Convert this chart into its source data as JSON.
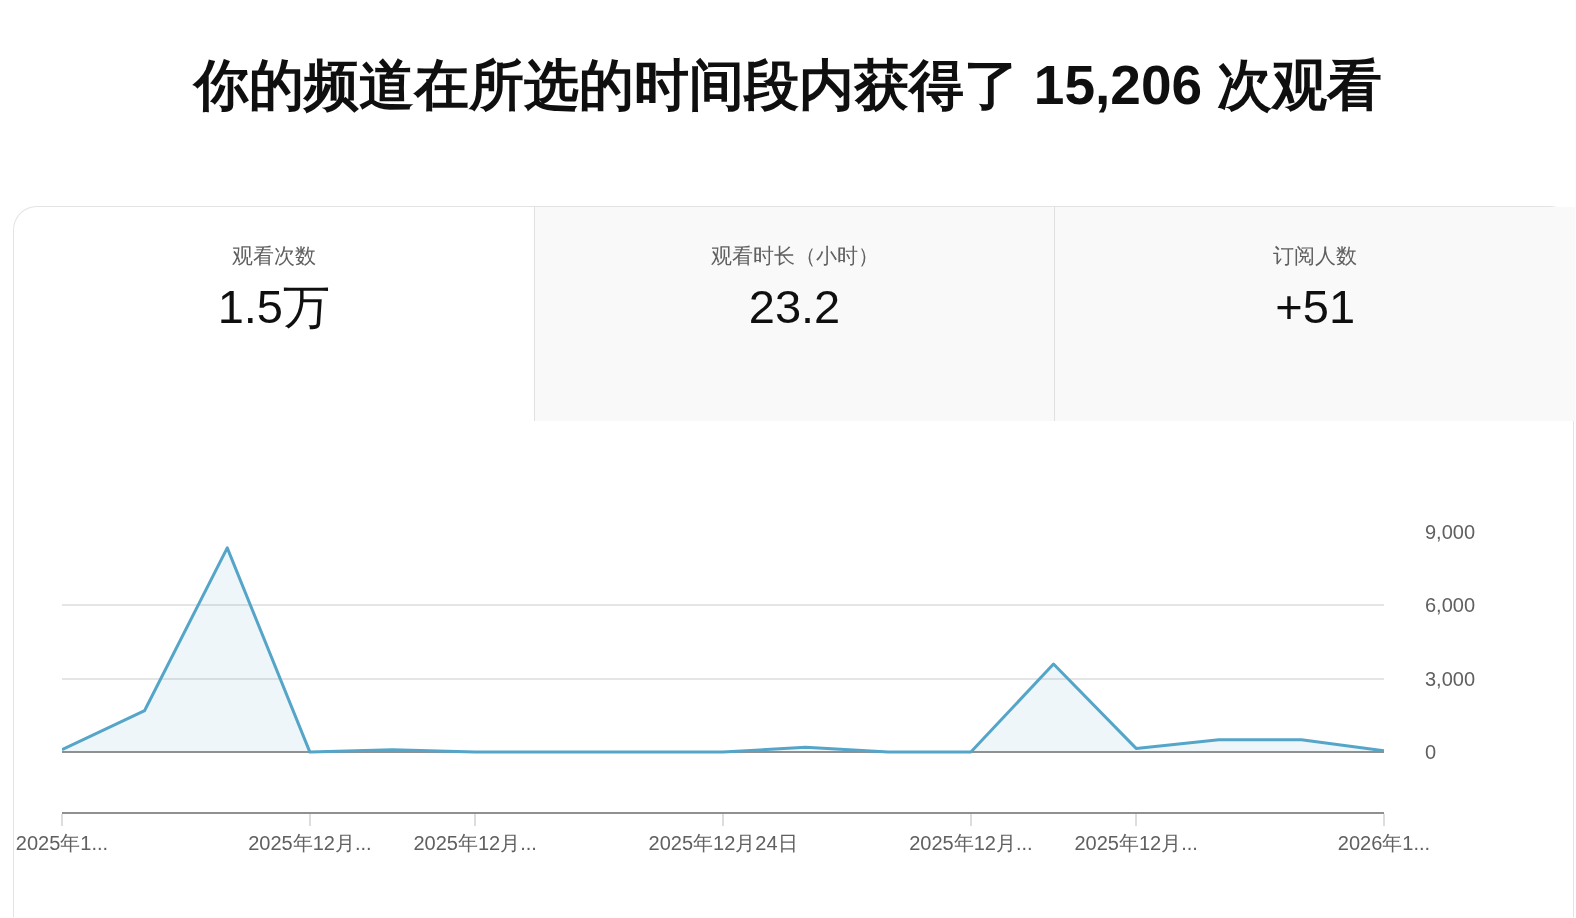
{
  "chart_data": [
    {
      "type": "other",
      "title": "你的频道在所选的时间段内获得了 15,206 次观看",
      "annotations": [
        "观看次数",
        "1.5万",
        "观看时长（小时）",
        "23.2",
        "订阅人数",
        "+51"
      ]
    },
    {
      "type": "area",
      "x": [
        "2025-12-16",
        "2025-12-17",
        "2025-12-18",
        "2025-12-19",
        "2025-12-20",
        "2025-12-21",
        "2025-12-22",
        "2025-12-23",
        "2025-12-24",
        "2025-12-25",
        "2025-12-26",
        "2025-12-27",
        "2025-12-28",
        "2025-12-29",
        "2025-12-30",
        "2025-12-31",
        "2026-01-01"
      ],
      "series": [
        {
          "color": "#55a5c9",
          "values": [
            100,
            1700,
            8350,
            0,
            100,
            0,
            0,
            0,
            0,
            200,
            0,
            0,
            3600,
            150,
            500,
            500,
            50
          ]
        }
      ],
      "xlim": [
        "2025-12-16",
        "2026-01-01"
      ],
      "xticks": [
        {
          "value": "2025-12-16",
          "label": "2025年1..."
        },
        {
          "value": "2025-12-19",
          "label": "2025年12月..."
        },
        {
          "value": "2025-12-21",
          "label": "2025年12月..."
        },
        {
          "value": "2025-12-24",
          "label": "2025年12月24日"
        },
        {
          "value": "2025-12-27",
          "label": "2025年12月..."
        },
        {
          "value": "2025-12-29",
          "label": "2025年12月..."
        },
        {
          "value": "2026-01-01",
          "label": "2026年1..."
        }
      ],
      "ylim": [
        -2450,
        9000
      ],
      "yticks": [
        0,
        {
          "value": 3000,
          "label": "3,000"
        },
        {
          "value": 6000,
          "label": "6,000"
        },
        {
          "value": 9000,
          "label": "9,000"
        }
      ],
      "grid": "y",
      "line_style": "solid"
    }
  ]
}
